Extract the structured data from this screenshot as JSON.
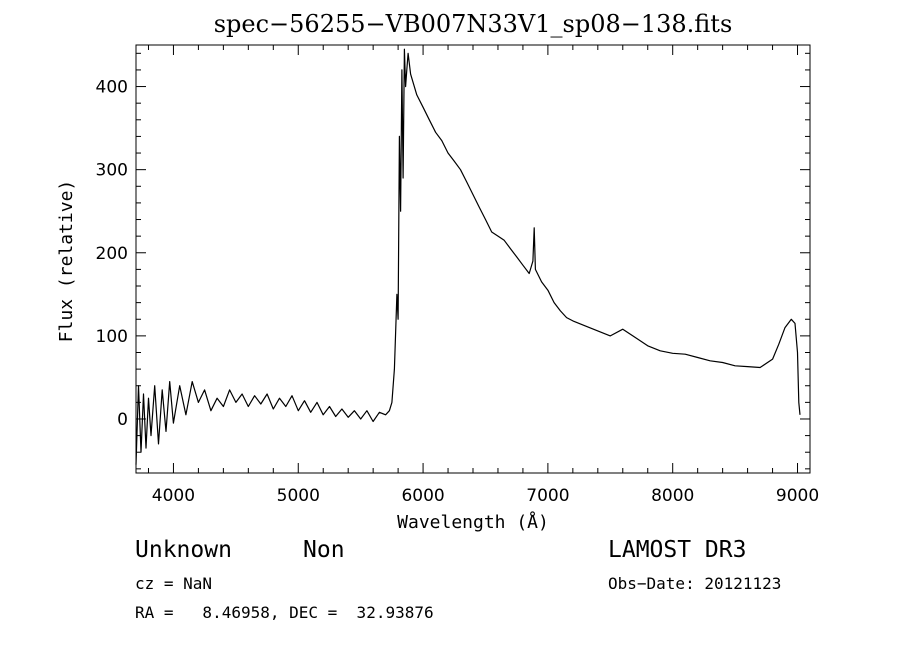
{
  "chart_data": {
    "type": "line",
    "title": "spec−56255−VB007N33V1_sp08−138.fits",
    "xlabel": "Wavelength (Å)",
    "ylabel": "Flux (relative)",
    "xlim": [
      3700,
      9100
    ],
    "ylim": [
      -65,
      450
    ],
    "xticks": [
      4000,
      5000,
      6000,
      7000,
      8000,
      9000
    ],
    "yticks": [
      0,
      100,
      200,
      300,
      400
    ],
    "grid": false,
    "series": [
      {
        "name": "spectrum",
        "x": [
          3700,
          3720,
          3740,
          3760,
          3780,
          3800,
          3820,
          3850,
          3880,
          3910,
          3940,
          3970,
          4000,
          4050,
          4100,
          4150,
          4200,
          4250,
          4300,
          4350,
          4400,
          4450,
          4500,
          4550,
          4600,
          4650,
          4700,
          4750,
          4800,
          4850,
          4900,
          4950,
          5000,
          5050,
          5100,
          5150,
          5200,
          5250,
          5300,
          5350,
          5400,
          5450,
          5500,
          5550,
          5600,
          5650,
          5700,
          5730,
          5750,
          5770,
          5790,
          5800,
          5810,
          5820,
          5830,
          5840,
          5850,
          5860,
          5870,
          5880,
          5900,
          5950,
          6000,
          6050,
          6100,
          6150,
          6200,
          6250,
          6300,
          6350,
          6400,
          6450,
          6500,
          6550,
          6600,
          6650,
          6700,
          6750,
          6800,
          6850,
          6880,
          6890,
          6900,
          6950,
          7000,
          7050,
          7100,
          7150,
          7200,
          7300,
          7400,
          7500,
          7600,
          7700,
          7800,
          7900,
          8000,
          8100,
          8200,
          8300,
          8400,
          8500,
          8600,
          8700,
          8800,
          8850,
          8900,
          8950,
          8980,
          9000,
          9010,
          9020
        ],
        "y": [
          -55,
          40,
          -40,
          30,
          -35,
          25,
          -20,
          40,
          -30,
          35,
          -15,
          45,
          -5,
          40,
          5,
          45,
          20,
          35,
          10,
          25,
          15,
          35,
          20,
          30,
          15,
          28,
          18,
          30,
          12,
          25,
          15,
          28,
          10,
          22,
          8,
          20,
          5,
          15,
          3,
          12,
          2,
          10,
          0,
          10,
          -3,
          8,
          5,
          10,
          20,
          60,
          150,
          120,
          340,
          250,
          420,
          290,
          445,
          400,
          420,
          440,
          415,
          390,
          375,
          360,
          345,
          335,
          320,
          310,
          300,
          285,
          270,
          255,
          240,
          225,
          220,
          215,
          205,
          195,
          185,
          175,
          190,
          230,
          180,
          165,
          155,
          140,
          130,
          122,
          118,
          112,
          106,
          100,
          108,
          98,
          88,
          82,
          79,
          78,
          74,
          70,
          68,
          64,
          63,
          62,
          72,
          90,
          110,
          120,
          115,
          80,
          20,
          5
        ]
      }
    ]
  },
  "annotations": {
    "object_class": "Unknown",
    "object_subclass": "Non",
    "survey": "LAMOST DR3",
    "cz_line": "cz = NaN",
    "obs_date_line": "Obs−Date: 20121123",
    "radec_line": "RA =   8.46958, DEC =  32.93876"
  }
}
